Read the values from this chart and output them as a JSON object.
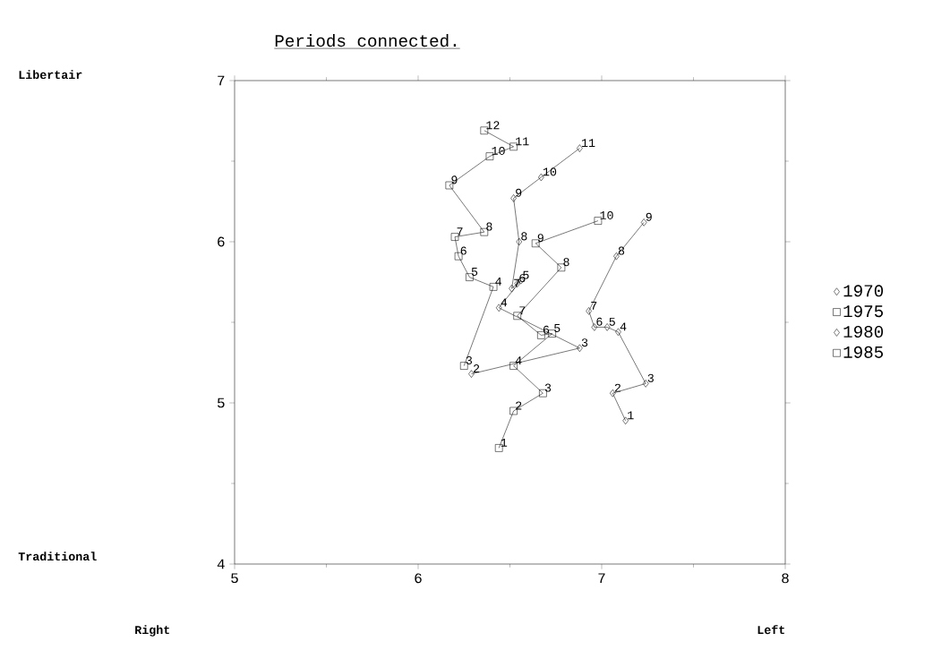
{
  "chart_data": {
    "type": "line",
    "title": "Periods connected.",
    "annotations": [
      "Libertair",
      "Traditional",
      "Right",
      "Left",
      {
        "text": "1",
        "x": 7.13,
        "y": 4.89
      },
      {
        "text": "2",
        "x": 7.06,
        "y": 5.06
      },
      {
        "text": "3",
        "x": 7.24,
        "y": 5.12
      },
      {
        "text": "4",
        "x": 7.09,
        "y": 5.44
      },
      {
        "text": "5",
        "x": 7.03,
        "y": 5.47
      },
      {
        "text": "6",
        "x": 6.96,
        "y": 5.47
      },
      {
        "text": "7",
        "x": 6.93,
        "y": 5.57
      },
      {
        "text": "8",
        "x": 7.08,
        "y": 5.91
      },
      {
        "text": "9",
        "x": 7.23,
        "y": 6.12
      },
      {
        "text": "1",
        "x": 6.44,
        "y": 4.72
      },
      {
        "text": "2",
        "x": 6.52,
        "y": 4.95
      },
      {
        "text": "3",
        "x": 6.68,
        "y": 5.06
      },
      {
        "text": "4",
        "x": 6.52,
        "y": 5.23
      },
      {
        "text": "5",
        "x": 6.73,
        "y": 5.43
      },
      {
        "text": "6",
        "x": 6.67,
        "y": 5.42
      },
      {
        "text": "7",
        "x": 6.54,
        "y": 5.54
      },
      {
        "text": "8",
        "x": 6.78,
        "y": 5.84
      },
      {
        "text": "9",
        "x": 6.64,
        "y": 5.99
      },
      {
        "text": "10",
        "x": 6.98,
        "y": 6.13
      },
      {
        "text": "2",
        "x": 6.29,
        "y": 5.18
      },
      {
        "text": "3",
        "x": 6.88,
        "y": 5.34
      },
      {
        "text": "4",
        "x": 6.44,
        "y": 5.59
      },
      {
        "text": "5",
        "x": 6.56,
        "y": 5.76
      },
      {
        "text": "6",
        "x": 6.54,
        "y": 5.74
      },
      {
        "text": "7",
        "x": 6.51,
        "y": 5.71
      },
      {
        "text": "8",
        "x": 6.55,
        "y": 6.0
      },
      {
        "text": "9",
        "x": 6.52,
        "y": 6.27
      },
      {
        "text": "10",
        "x": 6.67,
        "y": 6.4
      },
      {
        "text": "11",
        "x": 6.88,
        "y": 6.58
      },
      {
        "text": "3",
        "x": 6.25,
        "y": 5.23
      },
      {
        "text": "4",
        "x": 6.41,
        "y": 5.72
      },
      {
        "text": "5",
        "x": 6.28,
        "y": 5.78
      },
      {
        "text": "6",
        "x": 6.22,
        "y": 5.91
      },
      {
        "text": "7",
        "x": 6.2,
        "y": 6.03
      },
      {
        "text": "8",
        "x": 6.36,
        "y": 6.06
      },
      {
        "text": "9",
        "x": 6.17,
        "y": 6.35
      },
      {
        "text": "10",
        "x": 6.39,
        "y": 6.53
      },
      {
        "text": "11",
        "x": 6.52,
        "y": 6.59
      },
      {
        "text": "12",
        "x": 6.36,
        "y": 6.69
      }
    ],
    "xlim": [
      5,
      8
    ],
    "ylim": [
      4,
      7
    ],
    "xticks": [
      5,
      6,
      7,
      8
    ],
    "yticks": [
      4,
      5,
      6,
      7
    ],
    "legend": "right",
    "series": [
      {
        "name": "1970",
        "color": "#000000",
        "marker": "diamond",
        "x": [
          7.13,
          7.06,
          7.24,
          7.09,
          7.03,
          6.96,
          6.93,
          7.08,
          7.23
        ],
        "values": [
          4.89,
          5.06,
          5.12,
          5.44,
          5.47,
          5.47,
          5.57,
          5.91,
          6.12
        ]
      },
      {
        "name": "1975",
        "color": "#000000",
        "marker": "square",
        "x": [
          6.44,
          6.52,
          6.68,
          6.52,
          6.73,
          6.67,
          6.54,
          6.78,
          6.64,
          6.98
        ],
        "values": [
          4.72,
          4.95,
          5.06,
          5.23,
          5.43,
          5.42,
          5.54,
          5.84,
          5.99,
          6.13
        ]
      },
      {
        "name": "1980",
        "color": "#000000",
        "marker": "diamond",
        "x": [
          6.29,
          6.88,
          6.44,
          6.56,
          6.54,
          6.51,
          6.55,
          6.52,
          6.67,
          6.88
        ],
        "values": [
          5.18,
          5.34,
          5.59,
          5.76,
          5.74,
          5.71,
          6.0,
          6.27,
          6.4,
          6.58
        ]
      },
      {
        "name": "1985",
        "color": "#000000",
        "marker": "square",
        "x": [
          6.25,
          6.41,
          6.28,
          6.22,
          6.2,
          6.36,
          6.17,
          6.39,
          6.52,
          6.36
        ],
        "values": [
          5.23,
          5.72,
          5.78,
          5.91,
          6.03,
          6.06,
          6.35,
          6.53,
          6.59,
          6.69
        ]
      }
    ]
  }
}
